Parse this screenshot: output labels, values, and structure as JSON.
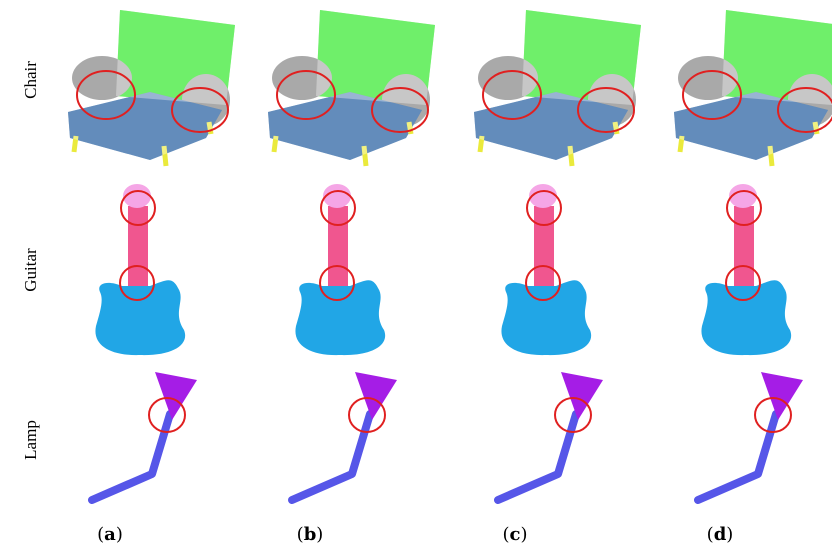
{
  "rows": [
    "Chair",
    "Guitar",
    "Lamp"
  ],
  "columns": [
    [
      "(",
      "a",
      ")"
    ],
    [
      "(",
      "b",
      ")"
    ],
    [
      "(",
      "c",
      ")"
    ],
    [
      "(",
      "d",
      ")"
    ]
  ]
}
